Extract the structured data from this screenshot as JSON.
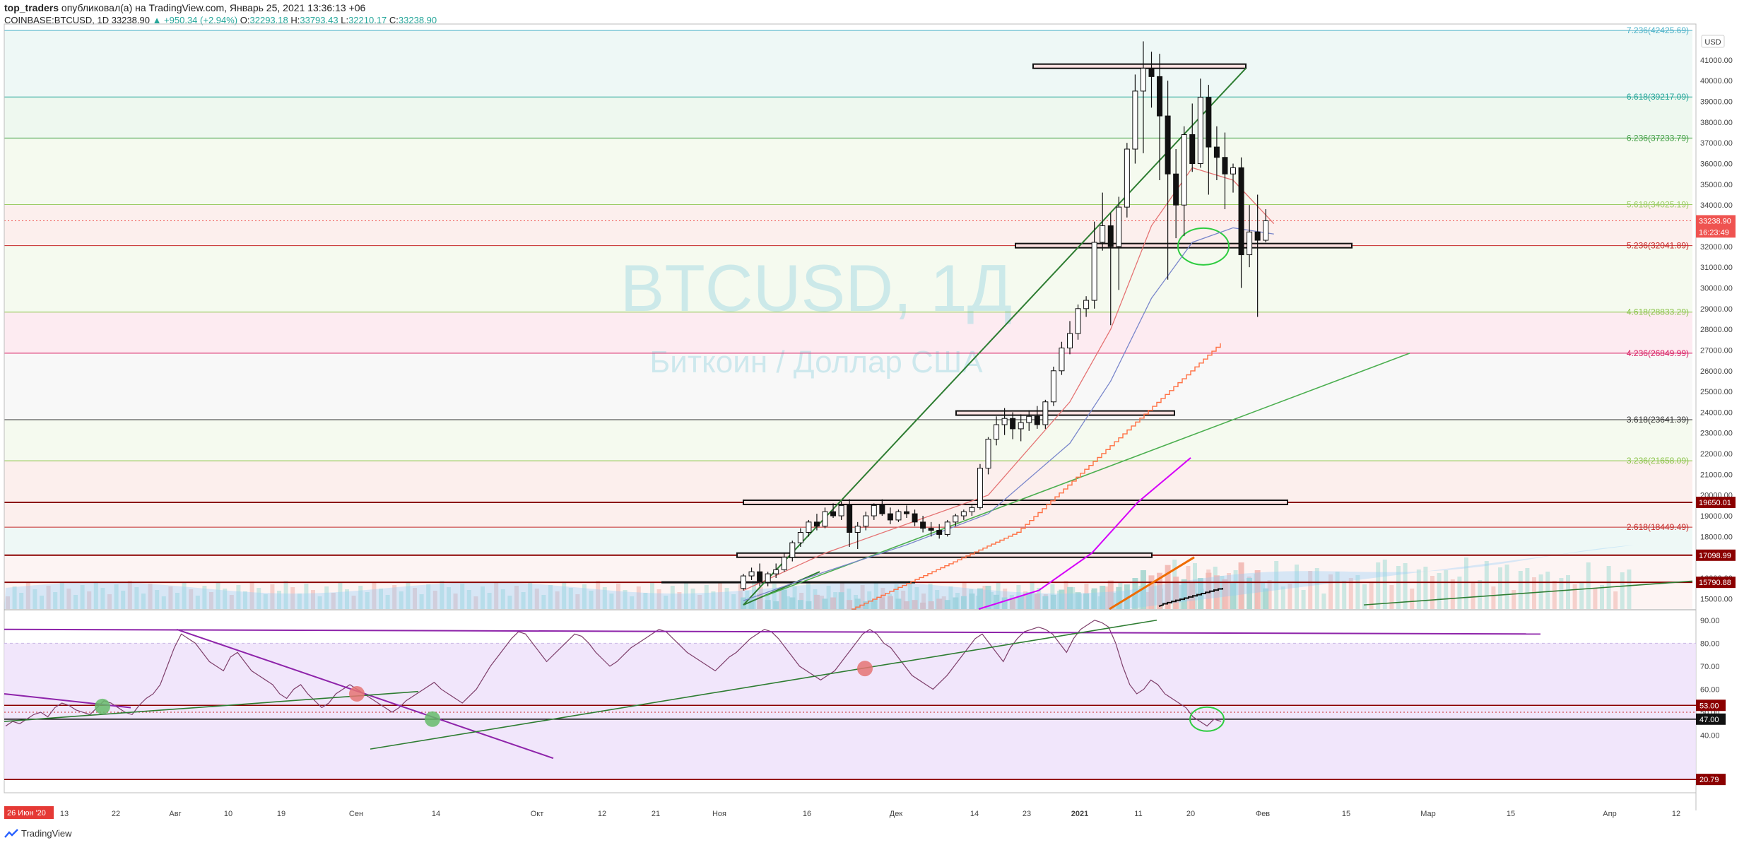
{
  "header": {
    "user": "top_traders",
    "published": "опубликовал(а) на TradingView.com, Январь 25, 2021 13:36:13 +06",
    "symbol": "COINBASE:BTCUSD, 1D",
    "last": "33238.90",
    "change": "▲ +950.34 (+2.94%)",
    "o_label": "O:",
    "o": "32293.18",
    "h_label": "H:",
    "h": "33793.43",
    "l_label": "L:",
    "l": "32210.17",
    "c_label": "C:",
    "c": "33238.90"
  },
  "watermark": {
    "symbol": "BTCUSD, 1Д",
    "name": "Биткоин / Доллар США"
  },
  "currency": "USD",
  "footer": {
    "brand": "TradingView"
  },
  "colors": {
    "up": "#26a69a",
    "accent_red": "#8b0000",
    "purple": "#9c27b0",
    "green_line": "#2e7d32",
    "orange": "#ef6c00"
  },
  "chart_data": [
    {
      "type": "candlestick",
      "price_axis": {
        "ylim": [
          14500,
          42600
        ],
        "ticks": [
          "15000.00",
          "16000.00",
          "17000.00",
          "18000.00",
          "19000.00",
          "20000.00",
          "21000.00",
          "22000.00",
          "23000.00",
          "24000.00",
          "25000.00",
          "26000.00",
          "27000.00",
          "28000.00",
          "29000.00",
          "30000.00",
          "31000.00",
          "32000.00",
          "33000.00",
          "34000.00",
          "35000.00",
          "36000.00",
          "37000.00",
          "38000.00",
          "39000.00",
          "40000.00",
          "41000.00"
        ]
      },
      "time_axis": [
        "26 Июн '20",
        "13",
        "22",
        "Авг",
        "10",
        "19",
        "Сен",
        "14",
        "Окт",
        "12",
        "21",
        "Ноя",
        "16",
        "Дек",
        "14",
        "23",
        "2021",
        "11",
        "20",
        "Фев",
        "15",
        "Мар",
        "15",
        "Апр",
        "12"
      ],
      "fib_levels": [
        {
          "label": "7.236(42425.69)",
          "value": 42425.69,
          "color": "#4fb3c9"
        },
        {
          "label": "6.618(39217.09)",
          "value": 39217.09,
          "color": "#26a69a"
        },
        {
          "label": "6.236(37233.79)",
          "value": 37233.79,
          "color": "#43a047"
        },
        {
          "label": "5.618(34025.19)",
          "value": 34025.19,
          "color": "#9ccc65"
        },
        {
          "label": "5.236(32041.89)",
          "value": 32041.89,
          "color": "#c62828"
        },
        {
          "label": "4.618(28833.29)",
          "value": 28833.29,
          "color": "#8bc34a"
        },
        {
          "label": "4.236(26849.99)",
          "value": 26849.99,
          "color": "#d81b60"
        },
        {
          "label": "3.618(23641.39)",
          "value": 23641.39,
          "color": "#333333"
        },
        {
          "label": "3.236(21658.09)",
          "value": 21658.09,
          "color": "#8bc34a"
        },
        {
          "label": "2.618(18449.49)",
          "value": 18449.49,
          "color": "#c62828"
        }
      ],
      "price_badges": [
        {
          "label": "33238.90",
          "value": 33238.9,
          "color": "#ef5350"
        },
        {
          "label": "16:23:49",
          "value": 32700,
          "color": "#ef5350"
        },
        {
          "label": "19650.01",
          "value": 19650.01,
          "color": "#8b0000"
        },
        {
          "label": "17098.99",
          "value": 17098.99,
          "color": "#8b0000"
        },
        {
          "label": "15790.88",
          "value": 15790.88,
          "color": "#8b0000"
        }
      ],
      "candles": [
        [
          15500,
          16200,
          15400,
          16100
        ],
        [
          16100,
          16500,
          15900,
          16300
        ],
        [
          16300,
          16700,
          15600,
          15800
        ],
        [
          15800,
          16300,
          15600,
          16200
        ],
        [
          16200,
          16700,
          16000,
          16400
        ],
        [
          16400,
          17200,
          16300,
          17000
        ],
        [
          17000,
          17800,
          16800,
          17700
        ],
        [
          17700,
          18400,
          17500,
          18200
        ],
        [
          18200,
          18800,
          18000,
          18700
        ],
        [
          18700,
          19100,
          18300,
          18500
        ],
        [
          18500,
          19400,
          18400,
          19200
        ],
        [
          19200,
          19600,
          18900,
          19000
        ],
        [
          19000,
          19700,
          18800,
          19500
        ],
        [
          19500,
          19800,
          17500,
          18200
        ],
        [
          18200,
          18700,
          17400,
          18500
        ],
        [
          18500,
          19200,
          18300,
          19000
        ],
        [
          19000,
          19600,
          18800,
          19500
        ],
        [
          19500,
          19800,
          19000,
          19100
        ],
        [
          19100,
          19400,
          18600,
          18800
        ],
        [
          18800,
          19300,
          18700,
          19200
        ],
        [
          19200,
          19500,
          18900,
          19100
        ],
        [
          19100,
          19300,
          18500,
          18700
        ],
        [
          18700,
          19000,
          18200,
          18400
        ],
        [
          18400,
          18700,
          18000,
          18300
        ],
        [
          18300,
          18600,
          17900,
          18100
        ],
        [
          18100,
          18800,
          18000,
          18700
        ],
        [
          18700,
          19100,
          18500,
          19000
        ],
        [
          19000,
          19300,
          18800,
          19200
        ],
        [
          19200,
          19500,
          19000,
          19400
        ],
        [
          19400,
          21500,
          19300,
          21300
        ],
        [
          21300,
          22800,
          21000,
          22700
        ],
        [
          22700,
          23800,
          22400,
          23400
        ],
        [
          23400,
          24200,
          22900,
          23700
        ],
        [
          23700,
          24000,
          22700,
          23200
        ],
        [
          23200,
          23900,
          22600,
          23500
        ],
        [
          23500,
          24100,
          23100,
          23800
        ],
        [
          23800,
          24300,
          23200,
          23400
        ],
        [
          23400,
          24600,
          23200,
          24500
        ],
        [
          24500,
          26200,
          24300,
          26000
        ],
        [
          26000,
          27400,
          25800,
          27100
        ],
        [
          27100,
          28400,
          26800,
          27800
        ],
        [
          27800,
          29200,
          27500,
          29000
        ],
        [
          29000,
          29600,
          28600,
          29400
        ],
        [
          29400,
          33200,
          29000,
          32200
        ],
        [
          32200,
          34600,
          31800,
          33000
        ],
        [
          33000,
          33600,
          28200,
          32000
        ],
        [
          32000,
          34400,
          29900,
          33900
        ],
        [
          33900,
          37000,
          33400,
          36700
        ],
        [
          36700,
          40300,
          36000,
          39500
        ],
        [
          39500,
          41900,
          36500,
          40600
        ],
        [
          40600,
          41400,
          38700,
          40200
        ],
        [
          40200,
          41300,
          35200,
          38300
        ],
        [
          38300,
          40000,
          30400,
          35500
        ],
        [
          35500,
          36700,
          32400,
          34000
        ],
        [
          34000,
          37800,
          32500,
          37400
        ],
        [
          37400,
          38900,
          35600,
          36000
        ],
        [
          36000,
          40100,
          35800,
          39200
        ],
        [
          39200,
          39800,
          34500,
          36800
        ],
        [
          36800,
          37800,
          35200,
          36300
        ],
        [
          36300,
          37500,
          33800,
          35500
        ],
        [
          35500,
          36000,
          34600,
          35800
        ],
        [
          35800,
          36300,
          30000,
          31600
        ],
        [
          31600,
          34000,
          31000,
          32700
        ],
        [
          32700,
          34500,
          28600,
          32300
        ],
        [
          32300,
          33800,
          32200,
          33239
        ]
      ],
      "volume_max": 6000,
      "volumes": [
        900,
        800,
        1200,
        700,
        600,
        1500,
        900,
        700,
        600,
        1100,
        800,
        900,
        1300,
        700,
        800,
        600,
        700,
        900,
        1000,
        800,
        600,
        700,
        500,
        600,
        800,
        700,
        900,
        1000,
        1200,
        1600,
        1800,
        1100,
        900,
        800,
        1000,
        1300,
        1200,
        1000,
        1100,
        1500,
        1700,
        1300,
        1200,
        1600,
        1800,
        2200,
        1700,
        1900,
        2400,
        3000,
        2600,
        2800,
        3400,
        2500,
        2300,
        2100,
        2400,
        2800,
        2600,
        2300,
        2000,
        3600,
        2400,
        3000,
        1600
      ],
      "ma_series": [
        {
          "name": "red",
          "color": "#e57373",
          "values": [
            [
              0,
              15400
            ],
            [
              10,
              17200
            ],
            [
              20,
              18600
            ],
            [
              30,
              20000
            ],
            [
              40,
              24500
            ],
            [
              45,
              28000
            ],
            [
              50,
              33000
            ],
            [
              55,
              35800
            ],
            [
              60,
              35200
            ],
            [
              65,
              33100
            ]
          ]
        },
        {
          "name": "blue",
          "color": "#7986cb",
          "values": [
            [
              0,
              14900
            ],
            [
              10,
              16300
            ],
            [
              20,
              17600
            ],
            [
              30,
              19100
            ],
            [
              40,
              22500
            ],
            [
              45,
              25500
            ],
            [
              50,
              29500
            ],
            [
              55,
              32200
            ],
            [
              60,
              32900
            ],
            [
              65,
              32600
            ]
          ]
        }
      ]
    },
    {
      "type": "line",
      "name": "RSI",
      "ylim": [
        15,
        93
      ],
      "ticks": [
        "40.00",
        "50.00",
        "60.00",
        "70.00",
        "80.00",
        "90.00"
      ],
      "levels": [
        {
          "label": "53.00",
          "value": 53,
          "color": "#8b0000"
        },
        {
          "label": "47.00",
          "value": 47,
          "color": "#111111"
        },
        {
          "label": "20.79",
          "value": 20.79,
          "color": "#8b0000"
        }
      ],
      "values": [
        44,
        46,
        45,
        47,
        49,
        50,
        48,
        52,
        54,
        53,
        51,
        50,
        49,
        52,
        55,
        54,
        52,
        50,
        49,
        53,
        56,
        58,
        62,
        70,
        78,
        84,
        82,
        80,
        76,
        72,
        70,
        68,
        74,
        76,
        72,
        68,
        66,
        64,
        62,
        58,
        56,
        60,
        62,
        58,
        55,
        52,
        54,
        58,
        60,
        62,
        60,
        58,
        56,
        54,
        52,
        50,
        52,
        55,
        57,
        59,
        61,
        63,
        60,
        58,
        56,
        54,
        57,
        60,
        65,
        70,
        74,
        78,
        82,
        85,
        84,
        80,
        76,
        72,
        75,
        78,
        81,
        84,
        83,
        80,
        76,
        73,
        70,
        72,
        75,
        78,
        80,
        82,
        84,
        86,
        85,
        82,
        79,
        76,
        74,
        72,
        70,
        68,
        71,
        74,
        76,
        79,
        82,
        84,
        86,
        85,
        82,
        78,
        74,
        70,
        68,
        66,
        64,
        66,
        68,
        72,
        76,
        80,
        84,
        86,
        84,
        80,
        78,
        74,
        70,
        66,
        64,
        62,
        60,
        63,
        66,
        70,
        74,
        78,
        82,
        84,
        80,
        76,
        72,
        78,
        82,
        85,
        86,
        87,
        86,
        84,
        80,
        76,
        82,
        86,
        88,
        90,
        89,
        87,
        80,
        70,
        62,
        58,
        60,
        64,
        62,
        58,
        56,
        54,
        52,
        48,
        46,
        44,
        47,
        46
      ],
      "points_per_day": 1
    }
  ]
}
